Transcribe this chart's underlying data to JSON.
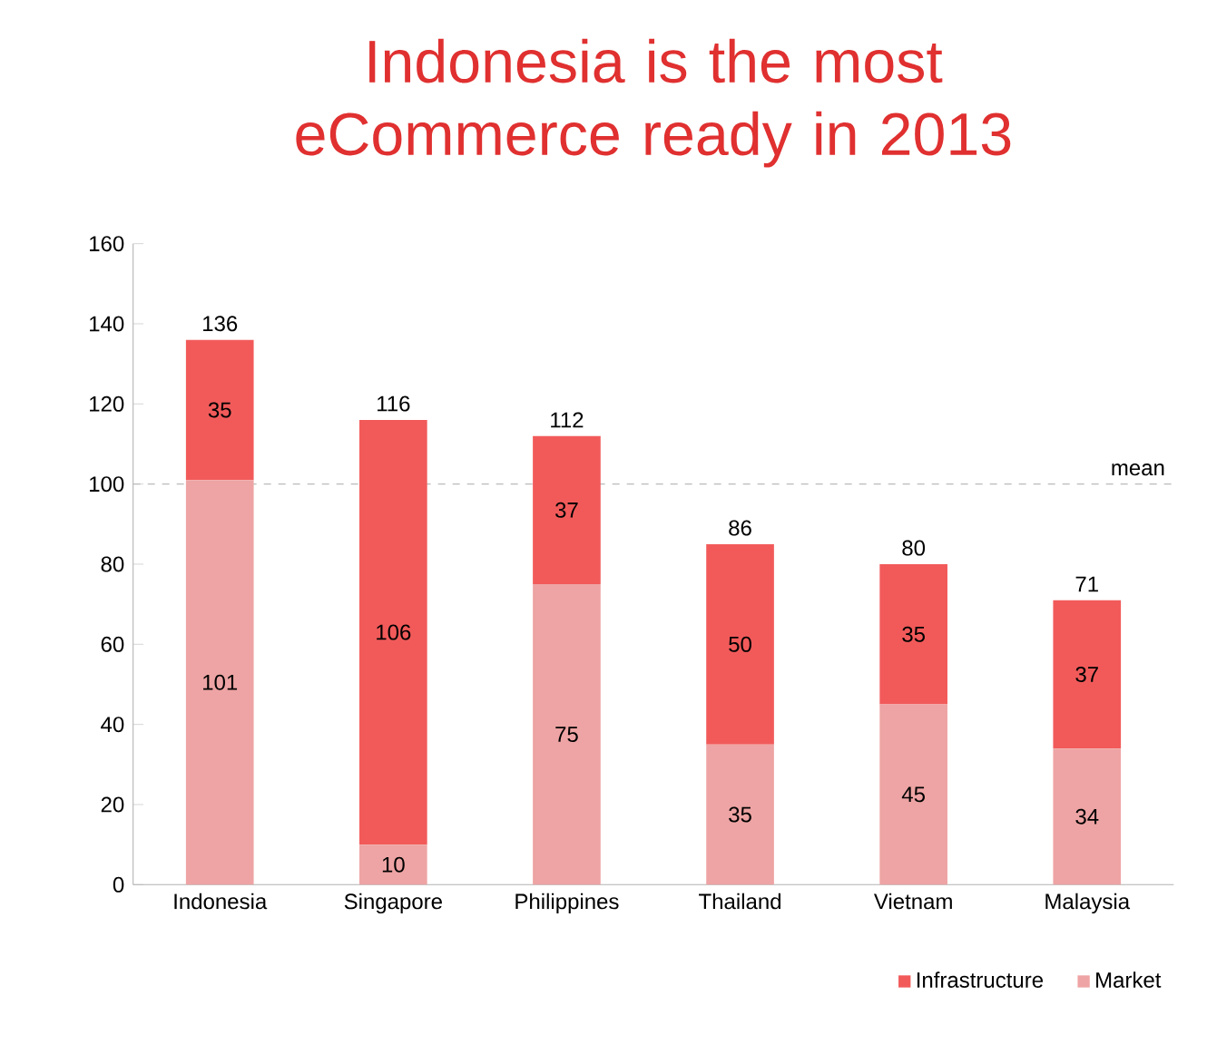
{
  "chart_data": {
    "type": "bar",
    "title": "Indonesia is the most eCommerce ready in 2013",
    "categories": [
      "Indonesia",
      "Singapore",
      "Philippines",
      "Thailand",
      "Vietnam",
      "Malaysia"
    ],
    "stacked": true,
    "series": [
      {
        "name": "Market",
        "color": "#eea4a4",
        "values": [
          101,
          10,
          75,
          35,
          45,
          34
        ]
      },
      {
        "name": "Infrastructure",
        "color": "#f25a5a",
        "values": [
          35,
          106,
          37,
          50,
          35,
          37
        ]
      }
    ],
    "totals": [
      "136",
      "116",
      "112",
      "86",
      "80",
      "71"
    ],
    "data_labels": true,
    "ylim": [
      0,
      160
    ],
    "yticks": [
      0,
      20,
      40,
      60,
      80,
      100,
      120,
      140,
      160
    ],
    "ref_lines": [
      {
        "axis": "y",
        "value": 100,
        "label": "mean",
        "color": "#bbbbbb",
        "line_style": "dashed"
      }
    ],
    "grid": false,
    "legend": "bottom right"
  }
}
